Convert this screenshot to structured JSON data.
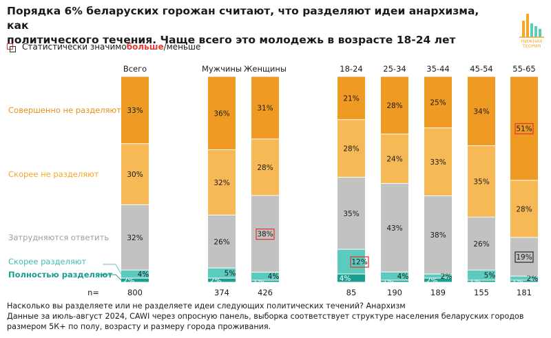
{
  "title_line1": "Порядка 6% беларуских горожан считают, что разделяют идеи анархизма, как",
  "title_line2": "политического течения. Чаще всего это молодежь в возрасте 18-24 лет",
  "legend": {
    "prefix": "Статистически значимо ",
    "more": "больше",
    "suffix": "/меньше"
  },
  "logo": {
    "line1": "НИЖНАЯ",
    "line2": "ТЕОРИЯ",
    "icon": "bar-chart-logo-icon"
  },
  "footer": {
    "line1": "Насколько вы разделяете или не разделяете идеи следующих политических течений? Анархизм",
    "line2": "Данные за июль-август 2024, CAWI через опросную панель, выборка соответствует структуре населения беларуских городов",
    "line3": "размером 5К+ по полу, возрасту и размеру города проживания."
  },
  "chart_data": {
    "type": "bar",
    "stacked": true,
    "categories": [
      "Всего",
      "Мужчины",
      "Женщины",
      "18-24",
      "25-34",
      "35-44",
      "45-54",
      "55-65"
    ],
    "n_label": "n=",
    "n": [
      800,
      374,
      426,
      85,
      190,
      189,
      155,
      181
    ],
    "series": [
      {
        "name": "Полностью разделяют",
        "color": "#1a9e8f",
        "text_color": "#1a9e8f",
        "values": [
          2,
          2,
          1,
          4,
          1,
          2,
          1,
          1
        ]
      },
      {
        "name": "Скорее разделяют",
        "color": "#5ccbbd",
        "text_color": "#3fbfae",
        "values": [
          4,
          5,
          4,
          12,
          4,
          2,
          5,
          2
        ]
      },
      {
        "name": "Затрудняются ответить",
        "color": "#c2c2c2",
        "text_color": "#9e9e9e",
        "values": [
          32,
          26,
          38,
          35,
          43,
          38,
          26,
          19
        ]
      },
      {
        "name": "Скорее не разделяют",
        "color": "#f7b856",
        "text_color": "#f5a623",
        "values": [
          30,
          32,
          28,
          28,
          24,
          33,
          35,
          28
        ]
      },
      {
        "name": "Совершенно не разделяют",
        "color": "#ef9a22",
        "text_color": "#e8901a",
        "values": [
          33,
          36,
          31,
          21,
          28,
          25,
          34,
          51
        ]
      }
    ],
    "highlights": [
      {
        "category": "Женщины",
        "series": "Затрудняются ответить",
        "type": "more",
        "color": "#e53935"
      },
      {
        "category": "18-24",
        "series": "Скорее разделяют",
        "type": "more",
        "color": "#e53935"
      },
      {
        "category": "55-65",
        "series": "Совершенно не разделяют",
        "type": "more",
        "color": "#e53935"
      },
      {
        "category": "55-65",
        "series": "Затрудняются ответить",
        "type": "less",
        "color": "#333333"
      }
    ],
    "ylim": [
      0,
      100
    ]
  }
}
